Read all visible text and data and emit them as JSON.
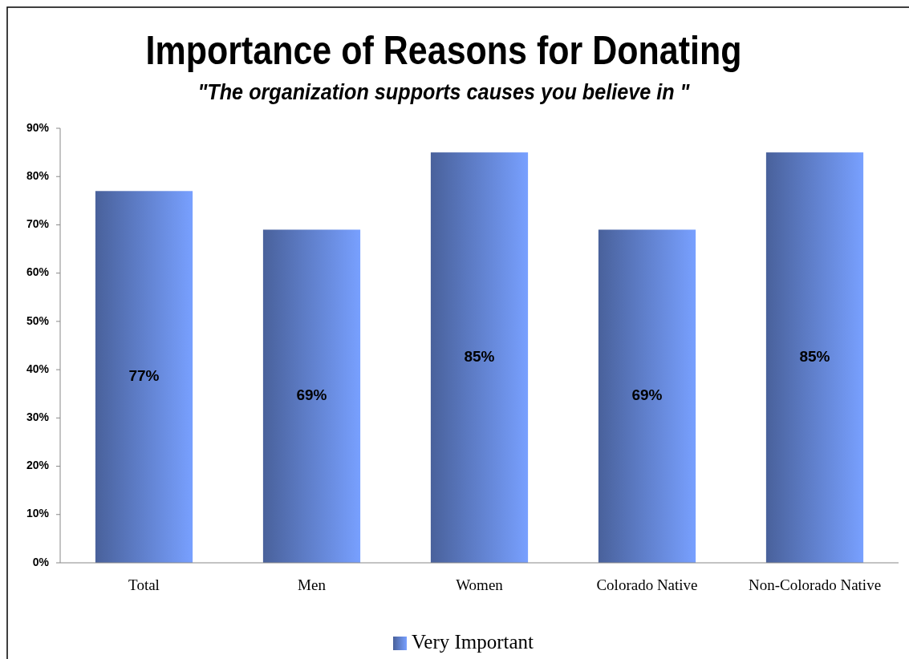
{
  "chart_data": {
    "type": "bar",
    "title": "Importance of Reasons for Donating",
    "subtitle": "\"The organization supports causes you believe in \"",
    "categories": [
      "Total",
      "Men",
      "Women",
      "Colorado Native",
      "Non-Colorado Native"
    ],
    "series": [
      {
        "name": "Very Important",
        "color": "#5a78c0",
        "values": [
          77,
          69,
          85,
          69,
          85
        ],
        "value_labels": [
          "77%",
          "69%",
          "85%",
          "69%",
          "85%"
        ]
      }
    ],
    "ylim": [
      0,
      90
    ],
    "yticks": [
      {
        "value": 0,
        "label": "0%"
      },
      {
        "value": 10,
        "label": "10%"
      },
      {
        "value": 20,
        "label": "20%"
      },
      {
        "value": 30,
        "label": "30%"
      },
      {
        "value": 40,
        "label": "40%"
      },
      {
        "value": 50,
        "label": "50%"
      },
      {
        "value": 60,
        "label": "60%"
      },
      {
        "value": 70,
        "label": "70%"
      },
      {
        "value": 80,
        "label": "80%"
      },
      {
        "value": 90,
        "label": "90%"
      }
    ],
    "grid": false,
    "legend": "bottom"
  }
}
